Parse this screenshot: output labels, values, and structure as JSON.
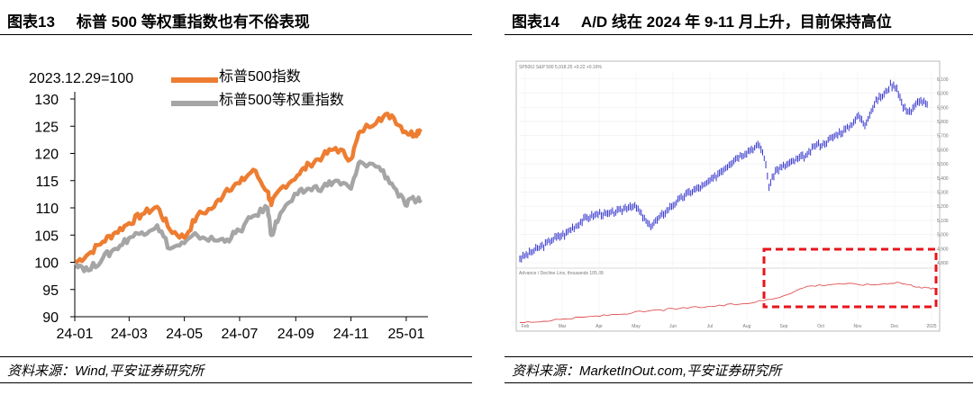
{
  "figures": [
    {
      "number": "图表13",
      "title": "标普 500 等权重指数也有不俗表现",
      "source": "资料来源：Wind,平安证券研究所"
    },
    {
      "number": "图表14",
      "title": "A/D 线在 2024 年 9-11 月上升，目前保持高位",
      "source": "资料来源：MarketInOut.com,平安证券研究所"
    }
  ],
  "chart_data": [
    {
      "type": "line",
      "title": "",
      "note": "2023.12.29=100",
      "xlabel": "",
      "ylabel": "",
      "ylim": [
        90,
        130
      ],
      "yticks": [
        90,
        95,
        100,
        105,
        110,
        115,
        120,
        125,
        130
      ],
      "xticks": [
        "24-01",
        "24-03",
        "24-05",
        "24-07",
        "24-09",
        "24-11",
        "25-01"
      ],
      "grid": false,
      "legend_position": "top",
      "x": [
        "24-01-02",
        "24-01-16",
        "24-02-01",
        "24-02-15",
        "24-03-01",
        "24-03-15",
        "24-04-01",
        "24-04-15",
        "24-05-01",
        "24-05-15",
        "24-06-03",
        "24-06-17",
        "24-07-01",
        "24-07-16",
        "24-08-01",
        "24-08-05",
        "24-08-15",
        "24-09-03",
        "24-09-16",
        "24-10-01",
        "24-10-15",
        "24-11-01",
        "24-11-11",
        "24-12-02",
        "24-12-16",
        "24-12-31",
        "25-01-10",
        "25-01-17"
      ],
      "series": [
        {
          "name": "标普500指数",
          "color": "#ED7D31",
          "values": [
            100,
            101.5,
            103.8,
            105.5,
            107.2,
            108.8,
            110.2,
            106.0,
            104.5,
            108.5,
            110.2,
            113.5,
            114.5,
            117.0,
            113.0,
            110.5,
            113.5,
            116.0,
            118.0,
            119.5,
            121.0,
            119.0,
            124.0,
            126.5,
            127.0,
            124.0,
            123.5,
            124.5
          ]
        },
        {
          "name": "标普500等权重指数",
          "color": "#A5A5A5",
          "values": [
            100,
            98.5,
            100.8,
            102.5,
            104.5,
            105.5,
            106.8,
            102.5,
            103.5,
            105.0,
            104.0,
            104.2,
            105.8,
            108.5,
            110.0,
            105.0,
            109.0,
            112.5,
            113.5,
            113.8,
            115.0,
            113.5,
            118.5,
            117.5,
            114.5,
            110.5,
            111.5,
            111.5
          ]
        }
      ]
    },
    {
      "type": "line",
      "title": "",
      "header": "SP500J  S&P 500  5,918.25  +9.22  +0.16%",
      "xticks": [
        "Feb",
        "Mar",
        "Apr",
        "May",
        "Jun",
        "Jul",
        "Aug",
        "Sep",
        "Oct",
        "Nov",
        "Dec",
        "2025"
      ],
      "ylim": [
        4800,
        6150
      ],
      "yticks": [
        4800,
        4900,
        5000,
        5100,
        5200,
        5300,
        5400,
        5500,
        5600,
        5700,
        5800,
        5900,
        6000,
        6100
      ],
      "series": [
        {
          "name": "S&P 500",
          "color": "#3333CC",
          "x": [
            0,
            8,
            15,
            22,
            28,
            32,
            36,
            40,
            44,
            50,
            55,
            60,
            64,
            67,
            70,
            74,
            78,
            81,
            85,
            90,
            95,
            100,
            105,
            110,
            115,
            120,
            125,
            130,
            135,
            140,
            144,
            148,
            150,
            153,
            156,
            160,
            165,
            170,
            175,
            180,
            185,
            190,
            196,
            200,
            205,
            209,
            212,
            216,
            220,
            224,
            228,
            232,
            236,
            240,
            245,
            250,
            255
          ],
          "values": [
            4830,
            4880,
            4925,
            4975,
            5000,
            5040,
            5070,
            5105,
            5125,
            5150,
            5140,
            5160,
            5175,
            5195,
            5205,
            5180,
            5105,
            5060,
            5090,
            5150,
            5200,
            5250,
            5290,
            5320,
            5345,
            5385,
            5440,
            5490,
            5540,
            5570,
            5600,
            5620,
            5630,
            5550,
            5345,
            5450,
            5480,
            5510,
            5540,
            5560,
            5630,
            5640,
            5690,
            5720,
            5750,
            5800,
            5840,
            5780,
            5880,
            5960,
            5990,
            6060,
            6040,
            5900,
            5870,
            5950,
            5918
          ]
        },
        {
          "name": "Advance / Decline Line, thousands 105.89",
          "color": "#E05050",
          "x": [
            0,
            20,
            40,
            60,
            80,
            100,
            120,
            140,
            160,
            180,
            200,
            220,
            236,
            250,
            260
          ],
          "values": [
            2,
            5,
            10,
            14,
            19,
            23,
            26,
            30,
            38,
            56,
            60,
            58,
            62,
            55,
            52
          ]
        }
      ]
    }
  ]
}
